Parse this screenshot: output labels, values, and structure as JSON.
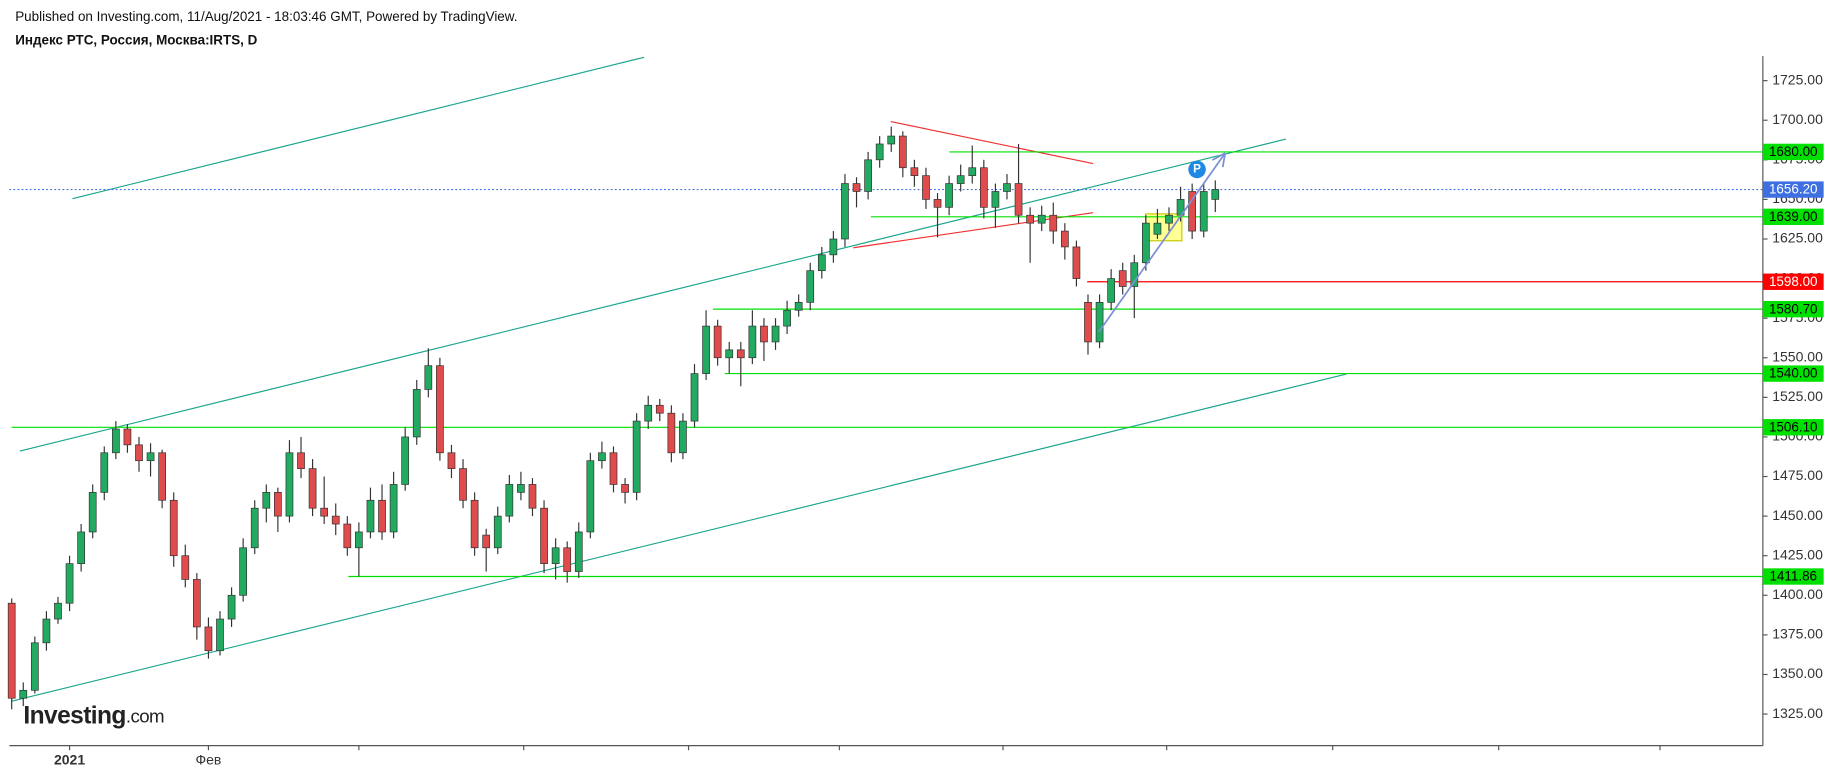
{
  "header": {
    "published": "Published on Investing.com, 11/Aug/2021 - 18:03:46 GMT, Powered by TradingView.",
    "symbol": "Индекс РТС, Россия, Москва:IRTS, D"
  },
  "watermark": {
    "brand": "Investing",
    "suffix": ".com"
  },
  "chart_data": {
    "type": "candlestick",
    "up_color": "#22ab60",
    "down_color": "#e04b4b",
    "categories": [
      null,
      null,
      null,
      null,
      null,
      "2021",
      null,
      null,
      null,
      null,
      null,
      null,
      null,
      null,
      null,
      null,
      null,
      "Фев",
      null,
      null,
      null,
      null,
      null,
      null,
      null,
      null,
      null,
      null,
      null,
      null,
      null,
      null,
      null,
      null,
      null,
      null,
      null,
      null,
      null,
      null,
      null,
      null,
      null,
      null,
      null,
      null,
      null,
      null,
      null,
      null,
      null,
      null,
      null,
      null,
      null,
      null,
      null,
      null,
      null,
      null,
      null,
      null,
      null,
      null,
      null,
      null,
      null,
      null,
      null,
      null,
      null,
      null,
      null,
      null,
      null,
      null,
      null,
      null,
      null,
      null,
      null,
      null,
      null,
      null,
      null,
      null,
      null,
      null,
      null,
      null,
      null,
      null,
      null,
      null,
      null,
      null,
      null,
      null,
      null,
      null,
      null,
      null,
      null,
      null,
      null
    ],
    "ohlc": [
      [
        1395,
        1398,
        1328,
        1335
      ],
      [
        1335,
        1345,
        1330,
        1340
      ],
      [
        1340,
        1374,
        1338,
        1370
      ],
      [
        1370,
        1390,
        1365,
        1385
      ],
      [
        1385,
        1399,
        1382,
        1395
      ],
      [
        1395,
        1425,
        1390,
        1420
      ],
      [
        1420,
        1445,
        1415,
        1440
      ],
      [
        1440,
        1470,
        1436,
        1465
      ],
      [
        1465,
        1494,
        1460,
        1490
      ],
      [
        1490,
        1510,
        1486,
        1505
      ],
      [
        1505,
        1508,
        1490,
        1495
      ],
      [
        1495,
        1500,
        1478,
        1485
      ],
      [
        1485,
        1496,
        1475,
        1490
      ],
      [
        1490,
        1492,
        1455,
        1460
      ],
      [
        1460,
        1465,
        1418,
        1425
      ],
      [
        1425,
        1432,
        1405,
        1410
      ],
      [
        1410,
        1414,
        1372,
        1380
      ],
      [
        1380,
        1386,
        1360,
        1365
      ],
      [
        1365,
        1390,
        1362,
        1385
      ],
      [
        1385,
        1405,
        1380,
        1400
      ],
      [
        1400,
        1436,
        1396,
        1430
      ],
      [
        1430,
        1460,
        1426,
        1455
      ],
      [
        1455,
        1470,
        1446,
        1465
      ],
      [
        1465,
        1468,
        1440,
        1450
      ],
      [
        1450,
        1498,
        1446,
        1490
      ],
      [
        1490,
        1500,
        1474,
        1480
      ],
      [
        1480,
        1486,
        1450,
        1455
      ],
      [
        1455,
        1475,
        1445,
        1450
      ],
      [
        1450,
        1458,
        1438,
        1445
      ],
      [
        1445,
        1450,
        1425,
        1430
      ],
      [
        1430,
        1446,
        1412,
        1440
      ],
      [
        1440,
        1468,
        1436,
        1460
      ],
      [
        1460,
        1470,
        1435,
        1440
      ],
      [
        1440,
        1478,
        1436,
        1470
      ],
      [
        1470,
        1506,
        1466,
        1500
      ],
      [
        1500,
        1536,
        1495,
        1530
      ],
      [
        1530,
        1556,
        1525,
        1545
      ],
      [
        1545,
        1550,
        1485,
        1490
      ],
      [
        1490,
        1495,
        1474,
        1480
      ],
      [
        1480,
        1486,
        1455,
        1460
      ],
      [
        1460,
        1465,
        1425,
        1430
      ],
      [
        1438,
        1442,
        1415,
        1430
      ],
      [
        1430,
        1456,
        1426,
        1450
      ],
      [
        1450,
        1476,
        1446,
        1470
      ],
      [
        1465,
        1478,
        1460,
        1470
      ],
      [
        1470,
        1474,
        1450,
        1455
      ],
      [
        1455,
        1460,
        1414,
        1420
      ],
      [
        1420,
        1436,
        1410,
        1430
      ],
      [
        1430,
        1434,
        1408,
        1415
      ],
      [
        1415,
        1446,
        1411,
        1440
      ],
      [
        1440,
        1490,
        1436,
        1485
      ],
      [
        1485,
        1497,
        1480,
        1490
      ],
      [
        1490,
        1494,
        1465,
        1470
      ],
      [
        1470,
        1474,
        1458,
        1465
      ],
      [
        1465,
        1515,
        1460,
        1510
      ],
      [
        1510,
        1526,
        1505,
        1520
      ],
      [
        1520,
        1524,
        1510,
        1515
      ],
      [
        1515,
        1520,
        1484,
        1490
      ],
      [
        1490,
        1515,
        1486,
        1510
      ],
      [
        1510,
        1546,
        1506,
        1540
      ],
      [
        1540,
        1580,
        1536,
        1570
      ],
      [
        1570,
        1574,
        1545,
        1550
      ],
      [
        1550,
        1560,
        1540,
        1555
      ],
      [
        1555,
        1560,
        1532,
        1550
      ],
      [
        1550,
        1580,
        1546,
        1570
      ],
      [
        1570,
        1575,
        1548,
        1560
      ],
      [
        1560,
        1575,
        1555,
        1570
      ],
      [
        1570,
        1586,
        1565,
        1580
      ],
      [
        1580,
        1590,
        1576,
        1585
      ],
      [
        1585,
        1610,
        1580,
        1605
      ],
      [
        1605,
        1620,
        1600,
        1615
      ],
      [
        1615,
        1630,
        1610,
        1625
      ],
      [
        1625,
        1666,
        1620,
        1660
      ],
      [
        1660,
        1664,
        1645,
        1655
      ],
      [
        1655,
        1680,
        1650,
        1675
      ],
      [
        1675,
        1690,
        1670,
        1685
      ],
      [
        1685,
        1696,
        1680,
        1690
      ],
      [
        1690,
        1693,
        1664,
        1670
      ],
      [
        1670,
        1675,
        1658,
        1665
      ],
      [
        1665,
        1670,
        1644,
        1650
      ],
      [
        1650,
        1654,
        1626,
        1645
      ],
      [
        1645,
        1665,
        1640,
        1660
      ],
      [
        1660,
        1672,
        1655,
        1665
      ],
      [
        1665,
        1684,
        1660,
        1670
      ],
      [
        1670,
        1675,
        1638,
        1645
      ],
      [
        1645,
        1660,
        1632,
        1655
      ],
      [
        1655,
        1666,
        1650,
        1660
      ],
      [
        1660,
        1685,
        1635,
        1640
      ],
      [
        1640,
        1645,
        1610,
        1635
      ],
      [
        1635,
        1646,
        1630,
        1640
      ],
      [
        1640,
        1648,
        1622,
        1630
      ],
      [
        1630,
        1635,
        1612,
        1620
      ],
      [
        1620,
        1624,
        1595,
        1600
      ],
      [
        1585,
        1590,
        1552,
        1560
      ],
      [
        1560,
        1590,
        1556,
        1585
      ],
      [
        1585,
        1606,
        1580,
        1600
      ],
      [
        1605,
        1610,
        1590,
        1595
      ],
      [
        1595,
        1615,
        1575,
        1610
      ],
      [
        1610,
        1640,
        1605,
        1635
      ],
      [
        1628,
        1644,
        1625,
        1635
      ],
      [
        1635,
        1645,
        1630,
        1640
      ],
      [
        1640,
        1658,
        1636,
        1650
      ],
      [
        1655,
        1660,
        1625,
        1630
      ],
      [
        1630,
        1660,
        1626,
        1655
      ],
      [
        1650,
        1662,
        1642,
        1656.2
      ]
    ],
    "ylim": [
      1310,
      1740
    ],
    "yticks": [
      {
        "value": 1325,
        "label": "1325.00"
      },
      {
        "value": 1350,
        "label": "1350.00"
      },
      {
        "value": 1375,
        "label": "1375.00"
      },
      {
        "value": 1400,
        "label": "1400.00"
      },
      {
        "value": 1425,
        "label": "1425.00"
      },
      {
        "value": 1450,
        "label": "1450.00"
      },
      {
        "value": 1475,
        "label": "1475.00"
      },
      {
        "value": 1500,
        "label": "1500.00"
      },
      {
        "value": 1525,
        "label": "1525.00"
      },
      {
        "value": 1550,
        "label": "1550.00"
      },
      {
        "value": 1575,
        "label": "1575.00"
      },
      {
        "value": 1600,
        "label": "1600.00"
      },
      {
        "value": 1625,
        "label": "1625.00"
      },
      {
        "value": 1650,
        "label": "1650.00"
      },
      {
        "value": 1675,
        "label": "1675.00"
      },
      {
        "value": 1700,
        "label": "1700.00"
      },
      {
        "value": 1725,
        "label": "1725.00"
      }
    ],
    "levels": [
      {
        "value": 1680,
        "label": "1680.00",
        "color": "#00e000"
      },
      {
        "value": 1639,
        "label": "1639.00",
        "color": "#00e000"
      },
      {
        "value": 1598,
        "label": "1598.00",
        "color": "#ff0000"
      },
      {
        "value": 1580.7,
        "label": "1580.70",
        "color": "#00e000"
      },
      {
        "value": 1540,
        "label": "1540.00",
        "color": "#00e000"
      },
      {
        "value": 1506.1,
        "label": "1506.10",
        "color": "#00e000"
      },
      {
        "value": 1411.86,
        "label": "1411.86",
        "color": "#00e000"
      }
    ],
    "last_price": {
      "value": 1656.2,
      "label": "1656.20",
      "color": "#3d6fe0"
    },
    "marker": "P"
  }
}
